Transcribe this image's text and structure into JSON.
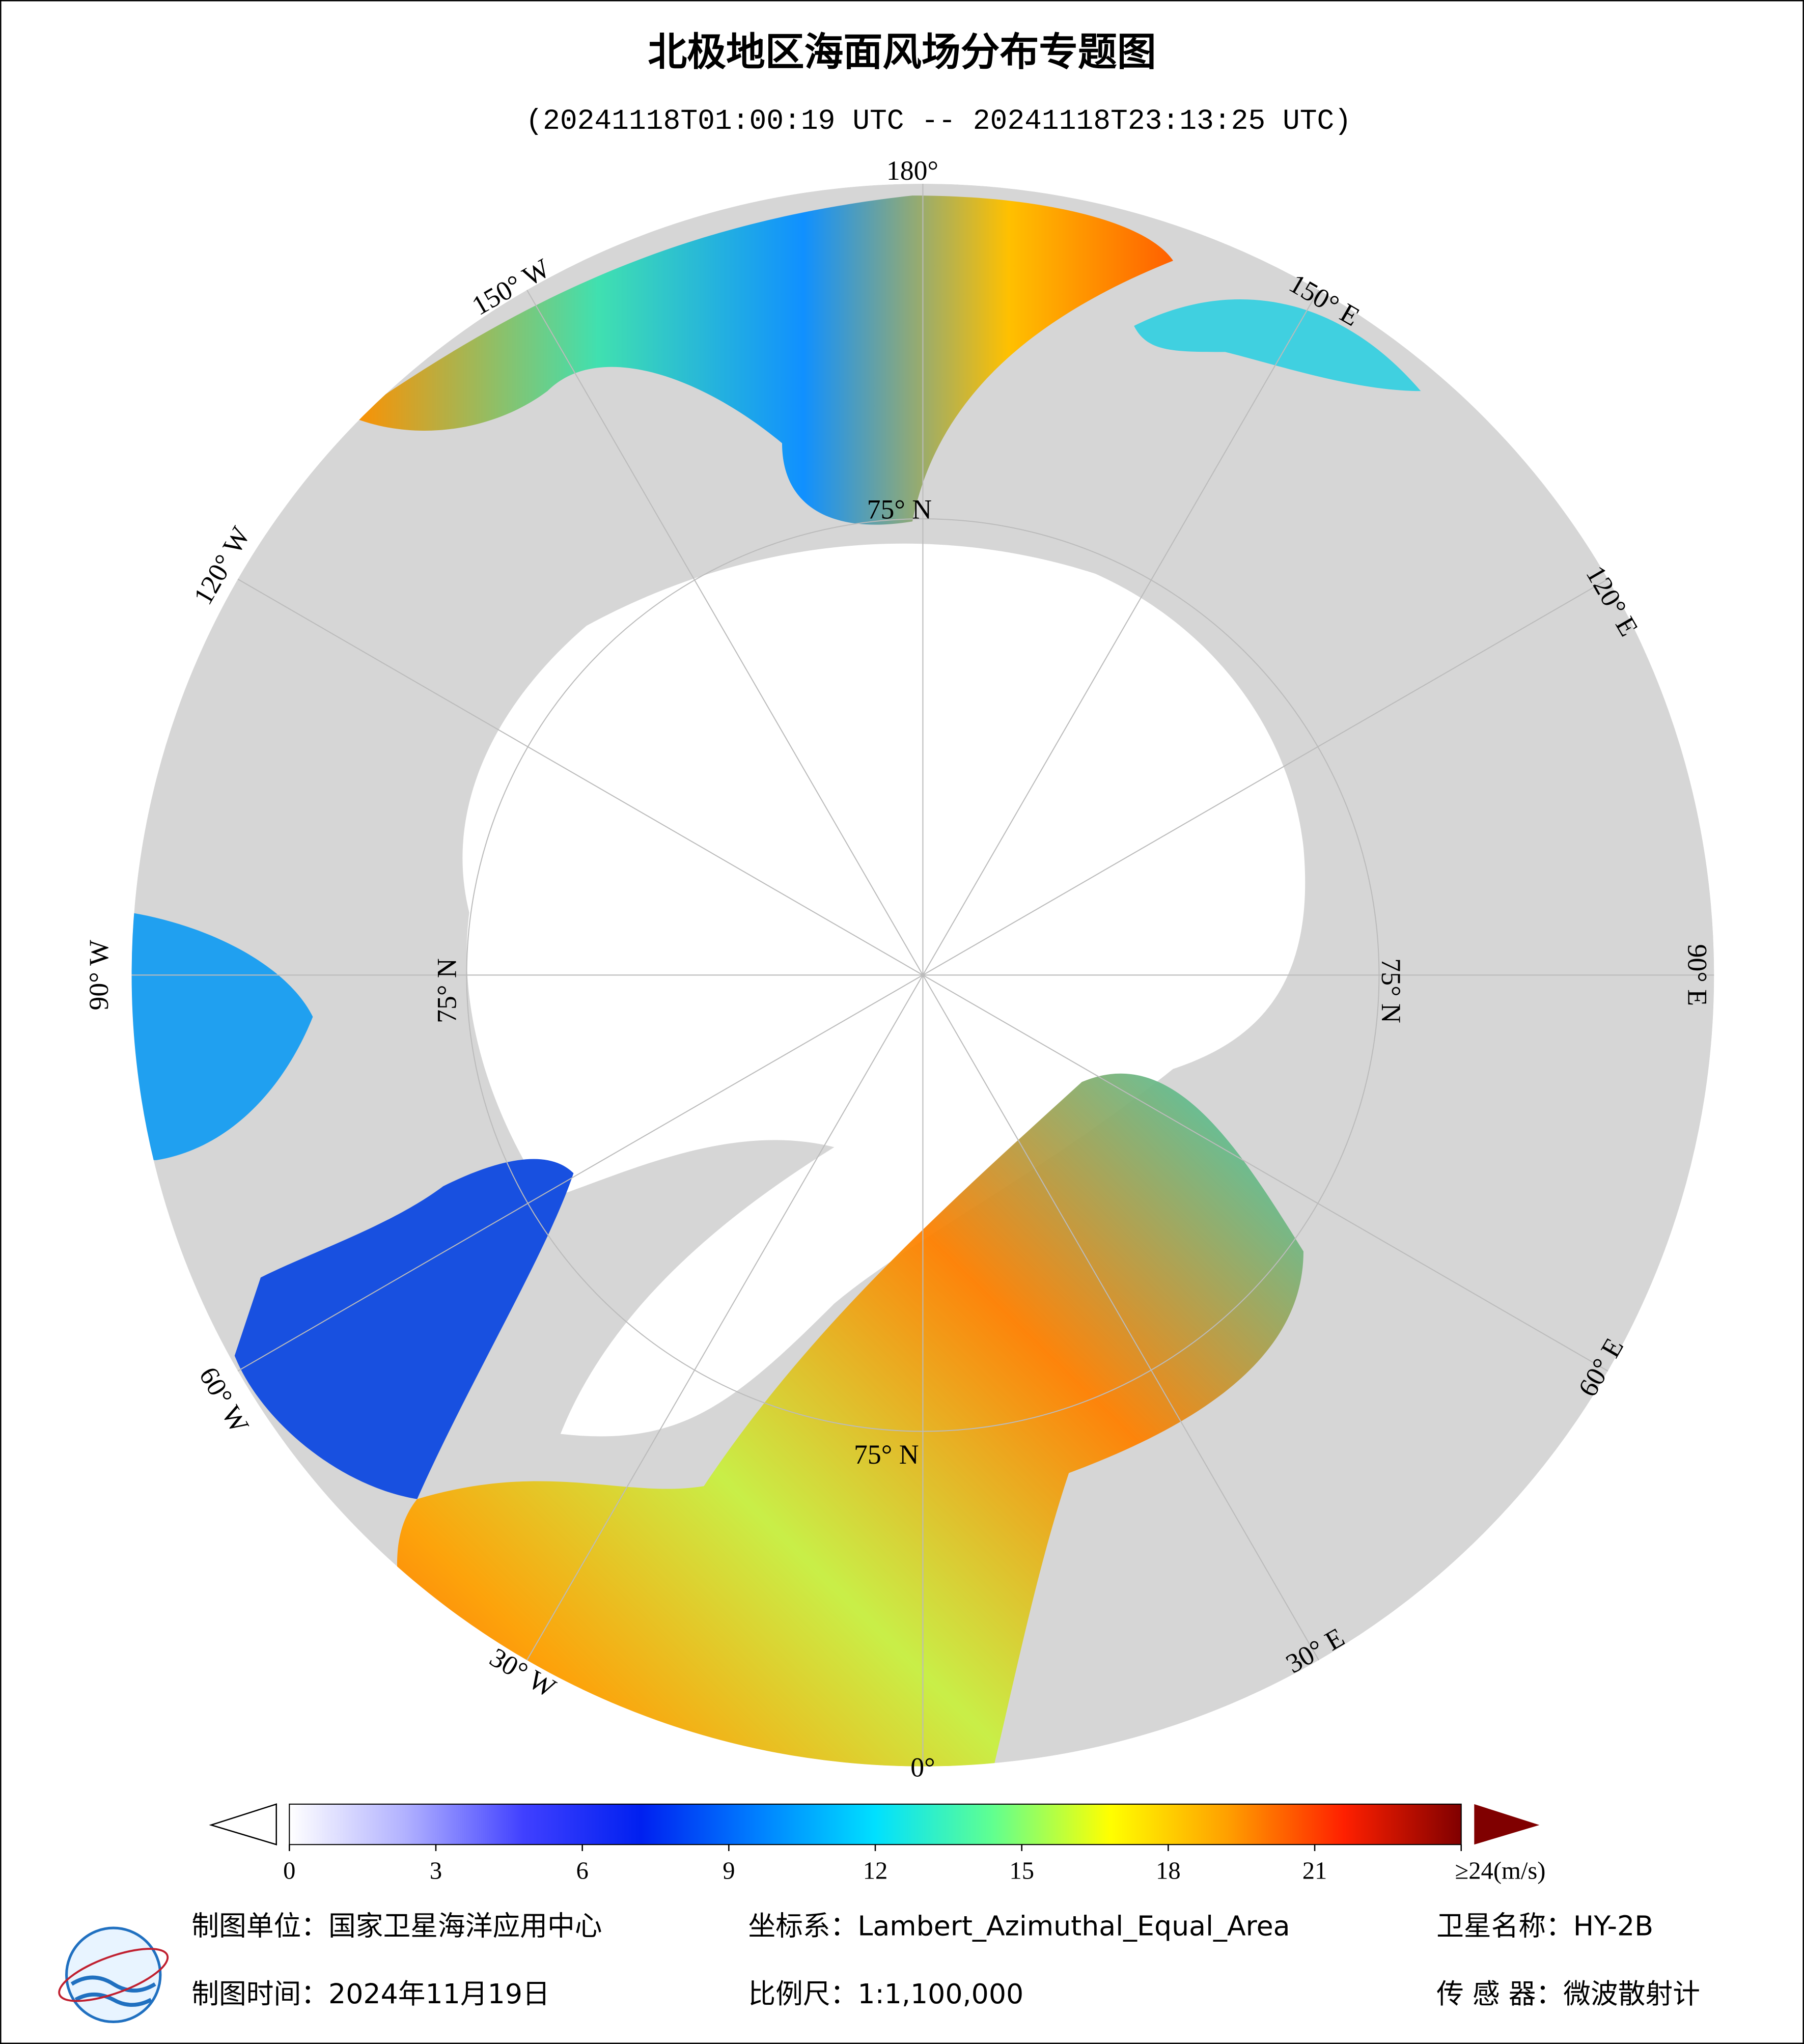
{
  "header": {
    "title": "北极地区海面风场分布专题图",
    "subtitle": "(20241118T01:00:19 UTC -- 20241118T23:13:25 UTC)"
  },
  "map": {
    "longitude_labels": [
      "180°",
      "150° W",
      "120° W",
      "90° W",
      "60° W",
      "30° W",
      "0°",
      "30° E",
      "60° E",
      "90° E",
      "120° E",
      "150° E"
    ],
    "latitude_labels": [
      "75° N",
      "75° N",
      "75° N",
      "75° N"
    ]
  },
  "colorbar": {
    "range": [
      0,
      24
    ],
    "ticks": [
      0,
      3,
      6,
      9,
      12,
      15,
      18,
      21,
      {
        "value": 24,
        "label": "≥24(m/s)"
      }
    ],
    "colors": [
      "#ffffff",
      "#b0b0ff",
      "#4040ff",
      "#0020f0",
      "#0080ff",
      "#00e0ff",
      "#60ff90",
      "#ffff00",
      "#ffa000",
      "#ff2000",
      "#800000"
    ]
  },
  "footer": {
    "producer": "制图单位：国家卫星海洋应用中心",
    "projection": "坐标系：Lambert_Azimuthal_Equal_Area",
    "satellite": "卫星名称：HY-2B",
    "date": "制图时间：2024年11月19日",
    "scale": "比例尺：1:1,100,000",
    "sensor": "传 感 器：微波散射计"
  }
}
